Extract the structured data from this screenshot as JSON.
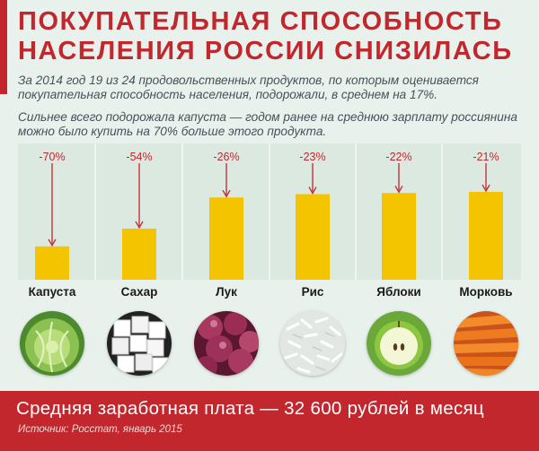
{
  "header": {
    "title_line1": "ПОКУПАТЕЛЬНАЯ СПОСОБНОСТЬ",
    "title_line2": "НАСЕЛЕНИЯ РОССИИ СНИЗИЛАСЬ",
    "paragraph1": "За 2014 год 19 из 24 продовольственных продуктов, по которым оценивается покупательная способность населения, подорожали, в среднем на 17%.",
    "paragraph2": "Сильнее всего подорожала капуста — годом ранее на среднюю зарплату россиянина можно было купить на 70% больше этого продукта."
  },
  "colors": {
    "accent": "#c1272d",
    "bar": "#f5c400",
    "background": "#e8f1ec"
  },
  "chart_data": {
    "type": "bar",
    "categories": [
      "Капуста",
      "Сахар",
      "Лук",
      "Рис",
      "Яблоки",
      "Морковь"
    ],
    "value_labels": [
      "-70%",
      "-54%",
      "-26%",
      "-23%",
      "-22%",
      "-21%"
    ],
    "values": [
      -70,
      -54,
      -26,
      -23,
      -22,
      -21
    ],
    "previous_level": 100,
    "current_levels": [
      30,
      46,
      74,
      77,
      78,
      79
    ],
    "title": "",
    "xlabel": "",
    "ylabel": "",
    "ylim": [
      0,
      100
    ],
    "grid": false,
    "legend": "none"
  },
  "icons": [
    "cabbage-icon",
    "sugar-cubes-icon",
    "red-onion-icon",
    "rice-icon",
    "apple-icon",
    "carrots-icon"
  ],
  "footer": {
    "salary_text": "Средняя заработная плата — 32 600 рублей в месяц",
    "source_text": "Источник: Росстат, январь 2015"
  }
}
